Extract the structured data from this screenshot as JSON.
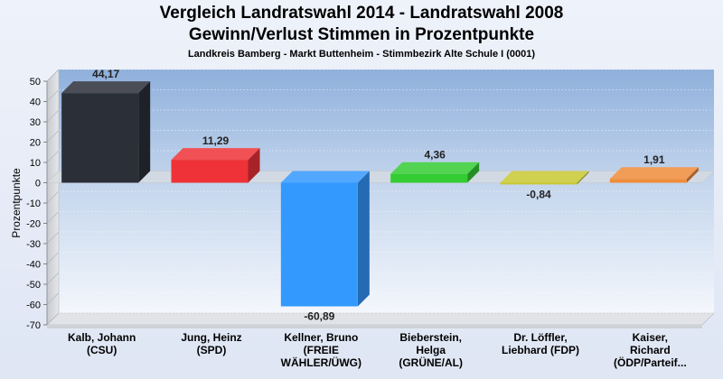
{
  "page": {
    "title_line1": "Vergleich Landratswahl 2014 - Landratswahl 2008",
    "title_line2": "Gewinn/Verlust Stimmen in Prozentpunkte",
    "subtitle": "Landkreis Bamberg - Markt Buttenheim - Stimmbezirk Alte Schule I (0001)"
  },
  "chart_data": {
    "type": "bar",
    "title": "Vergleich Landratswahl 2014 - Landratswahl 2008 / Gewinn/Verlust Stimmen in Prozentpunkte",
    "subtitle": "Landkreis Bamberg - Markt Buttenheim - Stimmbezirk Alte Schule I (0001)",
    "xlabel": "",
    "ylabel": "Prozentpunkte",
    "ylim": [
      -70,
      50
    ],
    "yticks": [
      50,
      40,
      30,
      20,
      10,
      0,
      -10,
      -20,
      -30,
      -40,
      -50,
      -60,
      -70
    ],
    "grid": true,
    "categories": [
      [
        "Kalb, Johann",
        "(CSU)"
      ],
      [
        "Jung, Heinz",
        "(SPD)"
      ],
      [
        "Kellner, Bruno",
        "(FREIE",
        "WÄHLER/ÜWG)"
      ],
      [
        "Bieberstein,",
        "Helga",
        "(GRÜNE/AL)"
      ],
      [
        "Dr. Löffler,",
        "Liebhard (FDP)"
      ],
      [
        "Kaiser,",
        "Richard",
        "(ÖDP/Parteif..."
      ]
    ],
    "values": [
      44.17,
      11.29,
      -60.89,
      4.36,
      -0.84,
      1.91
    ],
    "value_labels": [
      "44,17",
      "11,29",
      "-60,89",
      "4,36",
      "-0,84",
      "1,91"
    ],
    "colors": [
      "#2b2f38",
      "#ee3237",
      "#3399ff",
      "#33cc33",
      "#c8c832",
      "#ef8c3a"
    ]
  }
}
